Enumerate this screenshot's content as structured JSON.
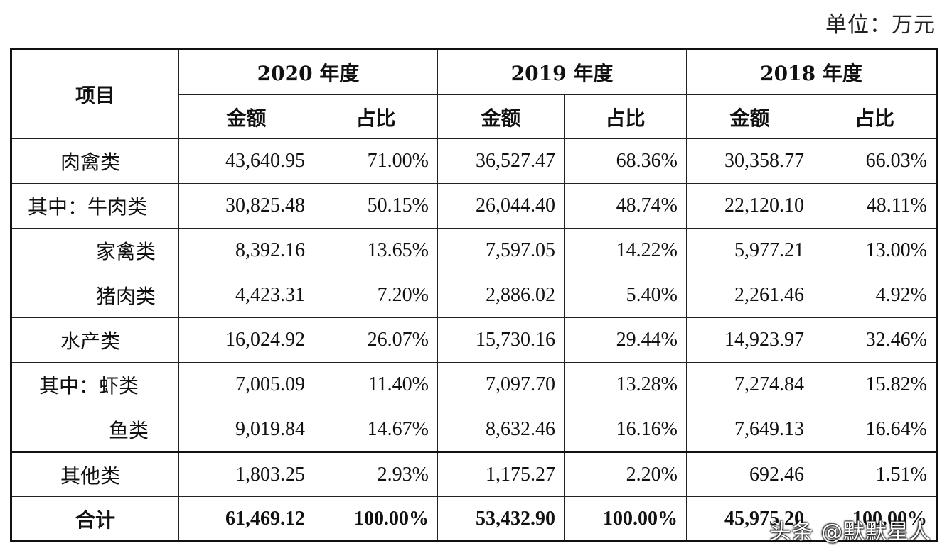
{
  "unit_label": "单位：万元",
  "header": {
    "item": "项目",
    "years": [
      "2020 年度",
      "2019 年度",
      "2018 年度"
    ],
    "amount": "金额",
    "ratio": "占比"
  },
  "rows": [
    {
      "label": "肉禽类",
      "v": [
        "43,640.95",
        "71.00%",
        "36,527.47",
        "68.36%",
        "30,358.77",
        "66.03%"
      ]
    },
    {
      "label": "其中：牛肉类",
      "v": [
        "30,825.48",
        "50.15%",
        "26,044.40",
        "48.74%",
        "22,120.10",
        "48.11%"
      ]
    },
    {
      "label": "家禽类",
      "v": [
        "8,392.16",
        "13.65%",
        "7,597.05",
        "14.22%",
        "5,977.21",
        "13.00%"
      ]
    },
    {
      "label": "猪肉类",
      "v": [
        "4,423.31",
        "7.20%",
        "2,886.02",
        "5.40%",
        "2,261.46",
        "4.92%"
      ]
    },
    {
      "label": "水产类",
      "v": [
        "16,024.92",
        "26.07%",
        "15,730.16",
        "29.44%",
        "14,923.97",
        "32.46%"
      ]
    },
    {
      "label": "其中：虾类",
      "v": [
        "7,005.09",
        "11.40%",
        "7,097.70",
        "13.28%",
        "7,274.84",
        "15.82%"
      ]
    },
    {
      "label": "鱼类",
      "v": [
        "9,019.84",
        "14.67%",
        "8,632.46",
        "16.16%",
        "7,649.13",
        "16.64%"
      ]
    },
    {
      "label": "其他类",
      "v": [
        "1,803.25",
        "2.93%",
        "1,175.27",
        "2.20%",
        "692.46",
        "1.51%"
      ]
    },
    {
      "label": "合计",
      "v": [
        "61,469.12",
        "100.00%",
        "53,432.90",
        "100.00%",
        "45,975.20",
        "100.00%"
      ]
    }
  ],
  "watermark": "头条 @默默星人"
}
